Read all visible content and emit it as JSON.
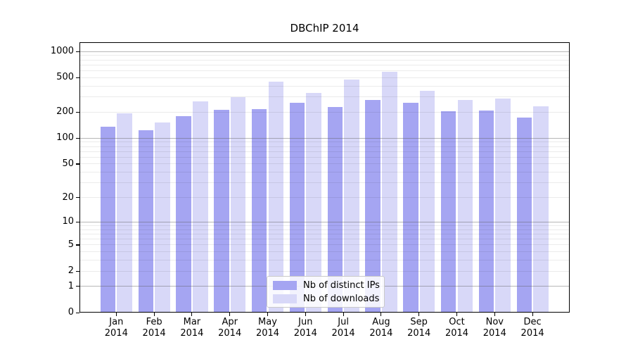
{
  "chart_data": {
    "type": "bar",
    "title": "DBChIP 2014",
    "xlabel": "",
    "ylabel": "",
    "scale": "log10(1+y)",
    "ylim": [
      0,
      1280
    ],
    "grid": "on",
    "legend_position": "bottom-center-inside",
    "y_ticks": [
      0,
      1,
      2,
      5,
      10,
      20,
      50,
      100,
      200,
      500,
      1000
    ],
    "y_tick_labels": [
      "0",
      "1",
      "2",
      "5",
      "10",
      "20",
      "50",
      "100",
      "200",
      "500",
      "1000"
    ],
    "x_months": [
      "Jan",
      "Feb",
      "Mar",
      "Apr",
      "May",
      "Jun",
      "Jul",
      "Aug",
      "Sep",
      "Oct",
      "Nov",
      "Dec"
    ],
    "x_year": "2014",
    "categories": [
      "Jan 2014",
      "Feb 2014",
      "Mar 2014",
      "Apr 2014",
      "May 2014",
      "Jun 2014",
      "Jul 2014",
      "Aug 2014",
      "Sep 2014",
      "Oct 2014",
      "Nov 2014",
      "Dec 2014"
    ],
    "series": [
      {
        "key": "distinct-ips",
        "name": "Nb of distinct IPs",
        "color": "#a5a5f2",
        "values": [
          136,
          124,
          181,
          214,
          216,
          258,
          229,
          275,
          258,
          205,
          210,
          172
        ]
      },
      {
        "key": "downloads",
        "name": "Nb of downloads",
        "color": "#d8d8f8",
        "values": [
          194,
          153,
          268,
          298,
          452,
          333,
          478,
          583,
          350,
          278,
          287,
          233
        ]
      }
    ]
  },
  "colors": {
    "background": "#ffffff",
    "text": "#000000",
    "axis": "#000000",
    "major_grid": "#9a9a9a",
    "minor_grid": "#e8e8e8",
    "legend_border": "#c9c9c9"
  }
}
